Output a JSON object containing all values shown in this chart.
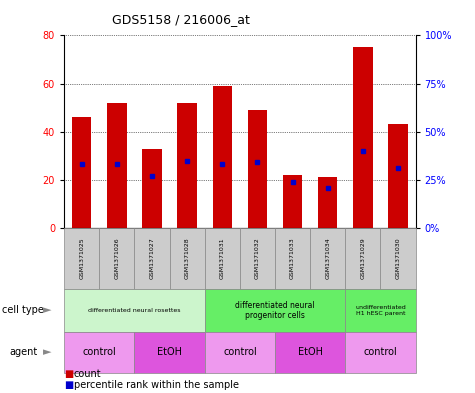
{
  "title": "GDS5158 / 216006_at",
  "samples": [
    "GSM1371025",
    "GSM1371026",
    "GSM1371027",
    "GSM1371028",
    "GSM1371031",
    "GSM1371032",
    "GSM1371033",
    "GSM1371034",
    "GSM1371029",
    "GSM1371030"
  ],
  "counts": [
    46,
    52,
    33,
    52,
    59,
    49,
    22,
    21,
    75,
    43
  ],
  "percentile_ranks": [
    33,
    33,
    27,
    35,
    33,
    34,
    24,
    21,
    40,
    31
  ],
  "bar_color": "#cc0000",
  "dot_color": "#0000cc",
  "ylim_left": [
    0,
    80
  ],
  "ylim_right": [
    0,
    100
  ],
  "yticks_left": [
    0,
    20,
    40,
    60,
    80
  ],
  "yticks_right": [
    0,
    25,
    50,
    75,
    100
  ],
  "ytick_labels_right": [
    "0%",
    "25%",
    "50%",
    "75%",
    "100%"
  ],
  "cell_type_groups": [
    {
      "label": "differentiated neural rosettes",
      "start": 0,
      "end": 3,
      "color": "#ccf5cc"
    },
    {
      "label": "differentiated neural\nprogenitor cells",
      "start": 4,
      "end": 7,
      "color": "#66ee66"
    },
    {
      "label": "undifferentiated\nH1 hESC parent",
      "start": 8,
      "end": 9,
      "color": "#66ee66"
    }
  ],
  "agent_groups": [
    {
      "label": "control",
      "start": 0,
      "end": 1,
      "color": "#ee99ee"
    },
    {
      "label": "EtOH",
      "start": 2,
      "end": 3,
      "color": "#dd55dd"
    },
    {
      "label": "control",
      "start": 4,
      "end": 5,
      "color": "#ee99ee"
    },
    {
      "label": "EtOH",
      "start": 6,
      "end": 7,
      "color": "#dd55dd"
    },
    {
      "label": "control",
      "start": 8,
      "end": 9,
      "color": "#ee99ee"
    }
  ],
  "sample_bg_color": "#cccccc",
  "legend_count_color": "#cc0000",
  "legend_dot_color": "#0000cc",
  "bg_color": "#ffffff"
}
